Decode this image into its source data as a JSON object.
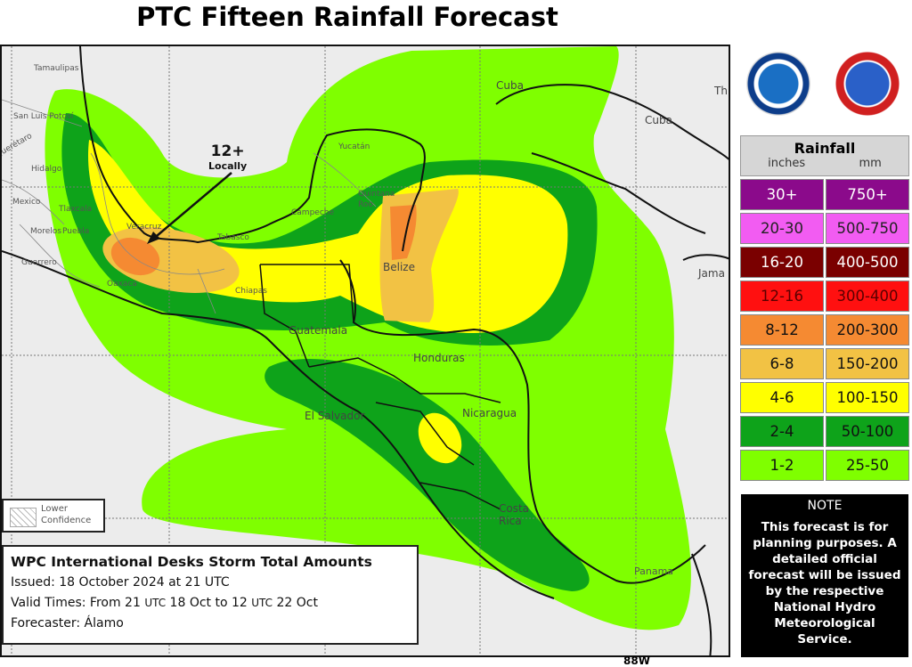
{
  "title": "PTC Fifteen Rainfall Forecast",
  "annotation": {
    "value": "12+",
    "text": "Locally"
  },
  "map_labels": {
    "tamaulipas": "Tamaulipas",
    "slp": "San Luis Potosí",
    "queretaro": "Querétaro",
    "hidalgo": "Hidalgo",
    "mexico": "Mexico",
    "tlaxcala": "Tlaxcala",
    "morelos": "Morelos",
    "puebla": "Puebla",
    "guerrero": "Guerrero",
    "oaxaca": "Oaxaca",
    "veracruz": "Veracruz",
    "tabasco": "Tabasco",
    "chiapas": "Chiapas",
    "campeche": "Campeche",
    "yucatan": "Yucatán",
    "quintana_roo": "Quintana Roo",
    "cuba1": "Cuba",
    "cuba2": "Cuba",
    "th": "Th",
    "jamaica": "Jama",
    "belize": "Belize",
    "guatemala": "Guatemala",
    "honduras": "Honduras",
    "el_salvador": "El Salvador",
    "nicaragua": "Nicaragua",
    "costa_rica": "Costa Rica",
    "panama": "Panama"
  },
  "axis_label": "88W",
  "lower_confidence": {
    "line1": "Lower",
    "line2": "Confidence"
  },
  "info": {
    "heading": "WPC International Desks Storm Total Amounts",
    "issued": "Issued:  18 October 2024 at 21 UTC",
    "valid_prefix": "Valid Times:  From 21 ",
    "valid_utc1": "UTC",
    "valid_mid": " 18 Oct  to 12 ",
    "valid_utc2": "UTC",
    "valid_suffix": " 22 Oct",
    "forecaster": "Forecaster: Álamo"
  },
  "logos": {
    "noaa": "NOAA",
    "nws": "National Weather Service"
  },
  "legend": {
    "title": "Rainfall",
    "unit_in": "inches",
    "unit_mm": "mm",
    "rows": [
      {
        "in": "30+",
        "mm": "750+",
        "color": "#8b0a8b",
        "text": "#ffffff"
      },
      {
        "in": "20-30",
        "mm": "500-750",
        "color": "#f25cf2",
        "text": "#222222"
      },
      {
        "in": "16-20",
        "mm": "400-500",
        "color": "#7a0000",
        "text": "#ffffff"
      },
      {
        "in": "12-16",
        "mm": "300-400",
        "color": "#ff1010",
        "text": "#5a0000"
      },
      {
        "in": "8-12",
        "mm": "200-300",
        "color": "#f58a32",
        "text": "#111111"
      },
      {
        "in": "6-8",
        "mm": "150-200",
        "color": "#f2c244",
        "text": "#111111"
      },
      {
        "in": "4-6",
        "mm": "100-150",
        "color": "#ffff00",
        "text": "#111111"
      },
      {
        "in": "2-4",
        "mm": "50-100",
        "color": "#0ea31a",
        "text": "#111111"
      },
      {
        "in": "1-2",
        "mm": "25-50",
        "color": "#7fff00",
        "text": "#111111"
      }
    ]
  },
  "note": {
    "heading": "NOTE",
    "body": "This forecast is for planning purposes. A detailed official forecast will be issued by the respective National Hydro Meteorological Service."
  }
}
